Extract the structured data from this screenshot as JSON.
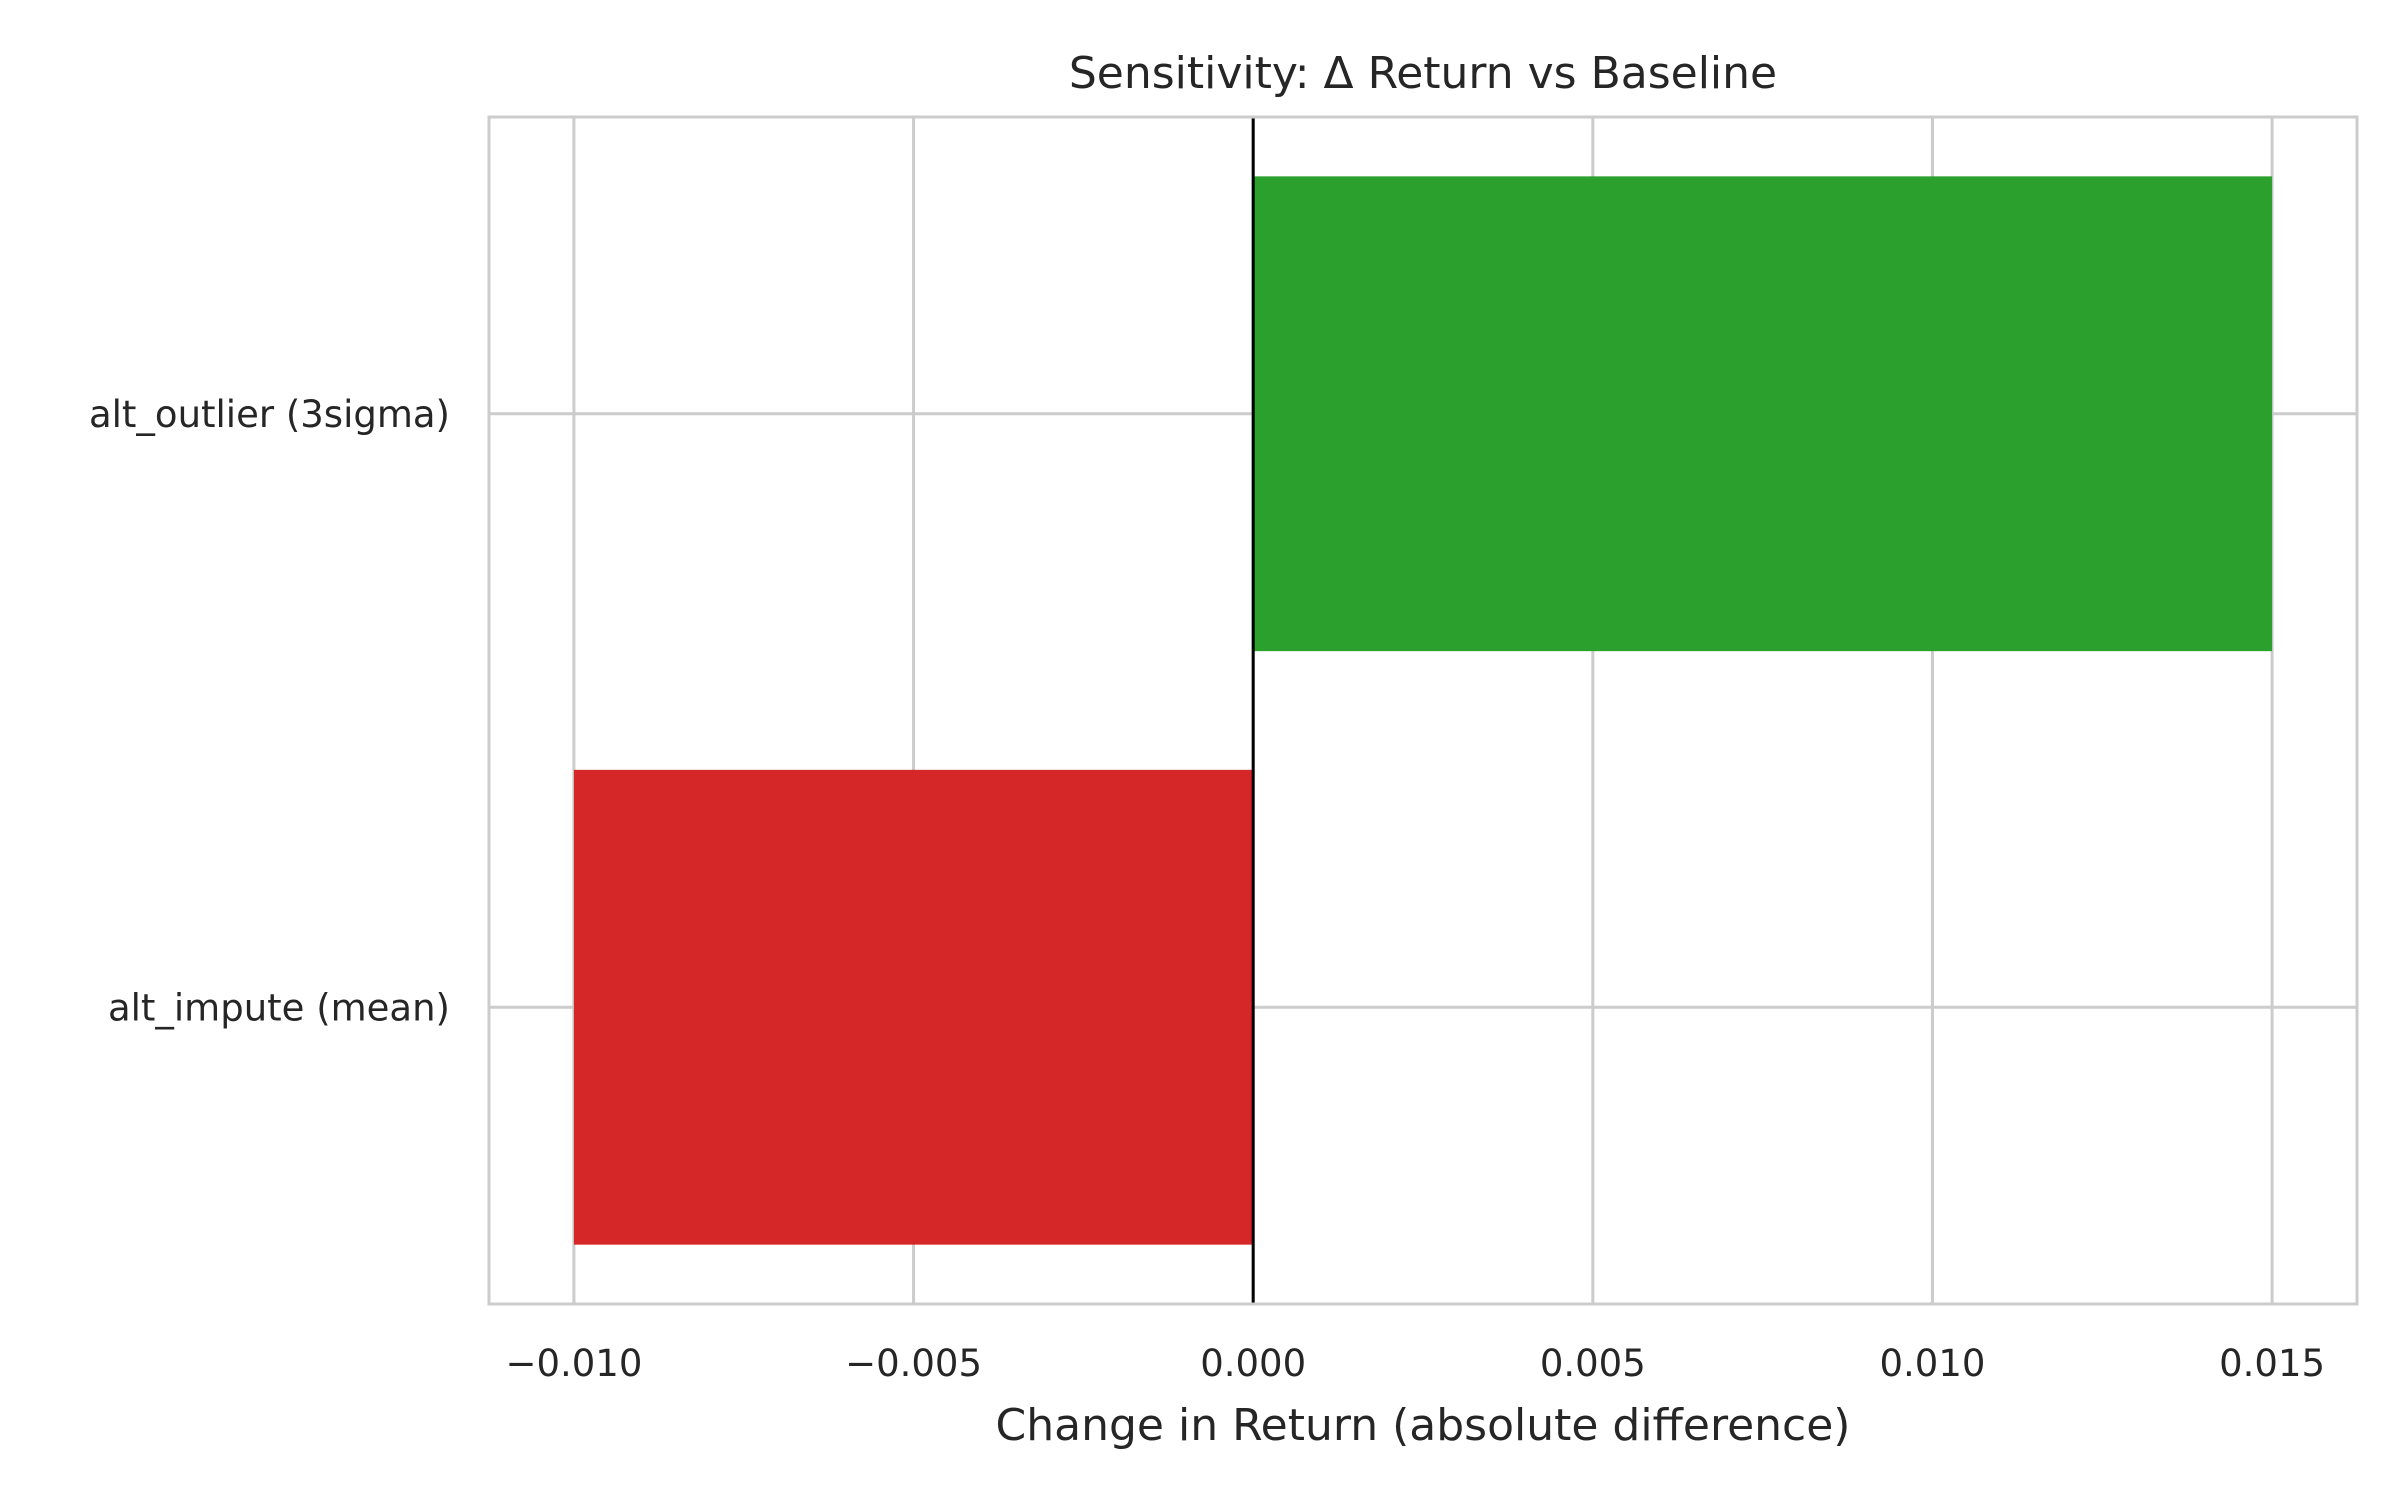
{
  "chart_data": {
    "type": "bar",
    "orientation": "horizontal",
    "title": "Sensitivity: Δ Return vs Baseline",
    "xlabel": "Change in Return (absolute difference)",
    "ylabel": "",
    "categories": [
      "alt_outlier (3sigma)",
      "alt_impute (mean)"
    ],
    "values": [
      0.015,
      -0.01
    ],
    "xlim": [
      -0.01125,
      0.01625
    ],
    "xticks": [
      "−0.010",
      "−0.005",
      "0.000",
      "0.005",
      "0.010",
      "0.015"
    ],
    "xtick_values": [
      -0.01,
      -0.005,
      0.0,
      0.005,
      0.01,
      0.015
    ],
    "zero_line": true,
    "grid": true,
    "legend": "none",
    "colors": {
      "positive": "#2ca02c",
      "negative": "#d62728",
      "grid": "#cccccc",
      "spine": "#cccccc",
      "zero_line": "#000000",
      "text": "#262626"
    }
  }
}
